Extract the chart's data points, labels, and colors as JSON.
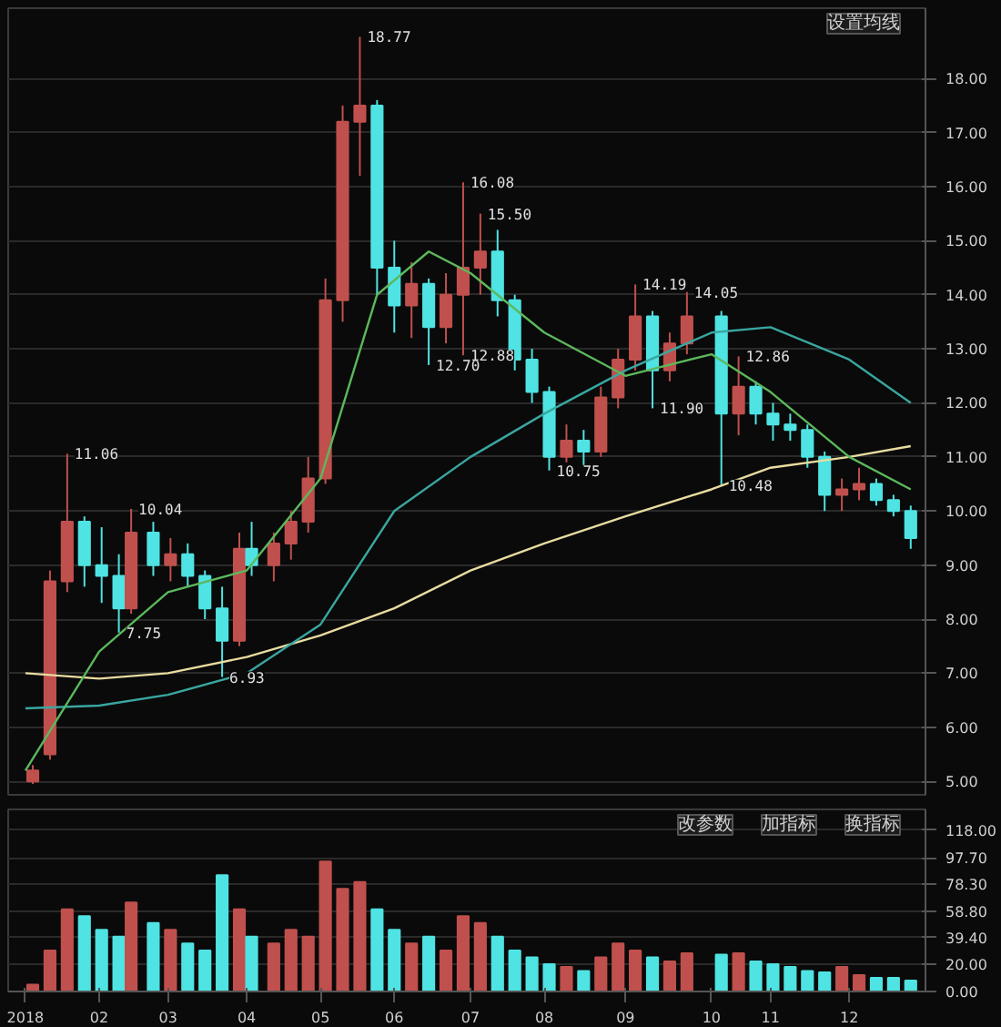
{
  "chart_data": [
    {
      "type": "candlestick",
      "x": [
        "2018-01-05",
        "2018-01-12",
        "2018-01-19",
        "2018-01-26",
        "2018-02-02",
        "2018-02-09",
        "2018-02-14",
        "2018-02-23",
        "2018-03-02",
        "2018-03-09",
        "2018-03-16",
        "2018-03-23",
        "2018-03-30",
        "2018-04-04",
        "2018-04-13",
        "2018-04-20",
        "2018-04-27",
        "2018-05-04",
        "2018-05-11",
        "2018-05-18",
        "2018-05-25",
        "2018-06-01",
        "2018-06-08",
        "2018-06-15",
        "2018-06-22",
        "2018-06-29",
        "2018-07-06",
        "2018-07-13",
        "2018-07-20",
        "2018-07-27",
        "2018-08-03",
        "2018-08-10",
        "2018-08-17",
        "2018-08-24",
        "2018-08-31",
        "2018-09-07",
        "2018-09-14",
        "2018-09-21",
        "2018-09-28",
        "2018-10-12",
        "2018-10-19",
        "2018-10-26",
        "2018-11-02",
        "2018-11-09",
        "2018-11-16",
        "2018-11-23",
        "2018-11-30",
        "2018-12-07",
        "2018-12-14",
        "2018-12-21",
        "2018-12-28"
      ],
      "ohlc": [
        [
          5.0,
          5.3,
          4.95,
          5.2
        ],
        [
          5.5,
          8.9,
          5.4,
          8.7
        ],
        [
          8.7,
          11.06,
          8.5,
          9.8
        ],
        [
          9.8,
          9.9,
          8.6,
          9.0
        ],
        [
          9.0,
          9.7,
          8.3,
          8.8
        ],
        [
          8.8,
          9.2,
          7.75,
          8.2
        ],
        [
          8.2,
          10.04,
          8.1,
          9.6
        ],
        [
          9.6,
          9.8,
          8.8,
          9.0
        ],
        [
          9.0,
          9.5,
          8.7,
          9.2
        ],
        [
          9.2,
          9.4,
          8.6,
          8.8
        ],
        [
          8.8,
          8.9,
          8.0,
          8.2
        ],
        [
          8.2,
          8.6,
          6.93,
          7.6
        ],
        [
          7.6,
          9.6,
          7.5,
          9.3
        ],
        [
          9.3,
          9.8,
          8.8,
          9.0
        ],
        [
          9.0,
          9.6,
          8.7,
          9.4
        ],
        [
          9.4,
          10.0,
          9.1,
          9.8
        ],
        [
          9.8,
          11.0,
          9.6,
          10.6
        ],
        [
          10.6,
          14.3,
          10.5,
          13.9
        ],
        [
          13.9,
          17.5,
          13.5,
          17.2
        ],
        [
          17.2,
          18.77,
          16.2,
          17.5
        ],
        [
          17.5,
          17.6,
          14.0,
          14.5
        ],
        [
          14.5,
          15.0,
          13.3,
          13.8
        ],
        [
          13.8,
          14.6,
          13.2,
          14.2
        ],
        [
          14.2,
          14.3,
          12.7,
          13.4
        ],
        [
          13.4,
          14.4,
          13.1,
          14.0
        ],
        [
          14.0,
          16.08,
          12.88,
          14.5
        ],
        [
          14.5,
          15.5,
          14.0,
          14.8
        ],
        [
          14.8,
          15.2,
          13.6,
          13.9
        ],
        [
          13.9,
          14.0,
          12.6,
          12.8
        ],
        [
          12.8,
          13.0,
          12.0,
          12.2
        ],
        [
          12.2,
          12.3,
          10.75,
          11.0
        ],
        [
          11.0,
          11.6,
          10.9,
          11.3
        ],
        [
          11.3,
          11.5,
          10.8,
          11.1
        ],
        [
          11.1,
          12.3,
          11.0,
          12.1
        ],
        [
          12.1,
          13.0,
          11.9,
          12.8
        ],
        [
          12.8,
          14.19,
          12.6,
          13.6
        ],
        [
          13.6,
          13.7,
          11.9,
          12.6
        ],
        [
          12.6,
          13.3,
          12.4,
          13.1
        ],
        [
          13.1,
          14.05,
          12.9,
          13.6
        ],
        [
          13.6,
          13.7,
          10.48,
          11.8
        ],
        [
          11.8,
          12.86,
          11.4,
          12.3
        ],
        [
          12.3,
          12.4,
          11.6,
          11.8
        ],
        [
          11.8,
          12.0,
          11.3,
          11.6
        ],
        [
          11.6,
          11.8,
          11.3,
          11.5
        ],
        [
          11.5,
          11.6,
          10.8,
          11.0
        ],
        [
          11.0,
          11.1,
          10.0,
          10.3
        ],
        [
          10.3,
          10.6,
          10.0,
          10.4
        ],
        [
          10.4,
          10.8,
          10.2,
          10.5
        ],
        [
          10.5,
          10.6,
          10.1,
          10.2
        ],
        [
          10.2,
          10.3,
          9.9,
          10.0
        ],
        [
          10.0,
          10.1,
          9.3,
          9.5
        ]
      ],
      "colors": [
        "#c0504d",
        "#c0504d",
        "#c0504d",
        "#4fe3e3",
        "#4fe3e3",
        "#4fe3e3",
        "#c0504d",
        "#4fe3e3",
        "#c0504d",
        "#4fe3e3",
        "#4fe3e3",
        "#4fe3e3",
        "#c0504d",
        "#4fe3e3",
        "#c0504d",
        "#c0504d",
        "#c0504d",
        "#c0504d",
        "#c0504d",
        "#c0504d",
        "#4fe3e3",
        "#4fe3e3",
        "#c0504d",
        "#4fe3e3",
        "#c0504d",
        "#c0504d",
        "#c0504d",
        "#4fe3e3",
        "#4fe3e3",
        "#4fe3e3",
        "#4fe3e3",
        "#c0504d",
        "#4fe3e3",
        "#c0504d",
        "#c0504d",
        "#c0504d",
        "#4fe3e3",
        "#c0504d",
        "#c0504d",
        "#4fe3e3",
        "#c0504d",
        "#4fe3e3",
        "#4fe3e3",
        "#4fe3e3",
        "#4fe3e3",
        "#4fe3e3",
        "#c0504d",
        "#c0504d",
        "#4fe3e3",
        "#4fe3e3",
        "#4fe3e3"
      ],
      "series": [
        {
          "type": "line",
          "color": "#e8dca0",
          "x": [
            "2018-01-02",
            "2018-02-01",
            "2018-03-01",
            "2018-04-02",
            "2018-05-02",
            "2018-06-01",
            "2018-07-02",
            "2018-08-01",
            "2018-09-03",
            "2018-10-08",
            "2018-11-01",
            "2018-12-03",
            "2018-12-28"
          ],
          "values": [
            7.0,
            6.9,
            7.0,
            7.3,
            7.7,
            8.2,
            8.9,
            9.4,
            9.9,
            10.4,
            10.8,
            11.0,
            11.2
          ]
        },
        {
          "type": "line",
          "color": "#3aa6a0",
          "x": [
            "2018-01-02",
            "2018-02-01",
            "2018-03-01",
            "2018-04-02",
            "2018-05-02",
            "2018-06-01",
            "2018-07-02",
            "2018-08-01",
            "2018-09-03",
            "2018-10-08",
            "2018-11-01",
            "2018-12-03",
            "2018-12-28"
          ],
          "values": [
            6.35,
            6.4,
            6.6,
            7.0,
            7.9,
            10.0,
            11.0,
            11.8,
            12.6,
            13.3,
            13.4,
            12.8,
            12.0
          ]
        },
        {
          "type": "line",
          "color": "#5cb85c",
          "x": [
            "2018-01-02",
            "2018-02-01",
            "2018-03-01",
            "2018-04-02",
            "2018-05-02",
            "2018-05-25",
            "2018-06-15",
            "2018-07-02",
            "2018-08-01",
            "2018-09-03",
            "2018-10-08",
            "2018-11-01",
            "2018-12-03",
            "2018-12-28"
          ],
          "values": [
            5.2,
            7.4,
            8.5,
            8.9,
            10.6,
            14.0,
            14.8,
            14.4,
            13.3,
            12.5,
            12.9,
            12.2,
            11.0,
            10.4
          ]
        }
      ],
      "xlim": [
        "2017-12-26",
        "2019-01-03"
      ],
      "ylim": [
        4.75,
        19.3
      ],
      "yticks": [
        {
          "value": 5,
          "label": "5.00"
        },
        {
          "value": 6,
          "label": "6.00"
        },
        {
          "value": 7,
          "label": "7.00"
        },
        {
          "value": 8,
          "label": "8.00"
        },
        {
          "value": 9,
          "label": "9.00"
        },
        {
          "value": 10,
          "label": "10.00"
        },
        {
          "value": 11,
          "label": "11.00"
        },
        {
          "value": 12,
          "label": "12.00"
        },
        {
          "value": 13,
          "label": "13.00"
        },
        {
          "value": 14,
          "label": "14.00"
        },
        {
          "value": 15,
          "label": "15.00"
        },
        {
          "value": 16,
          "label": "16.00"
        },
        {
          "value": 17,
          "label": "17.00"
        },
        {
          "value": 18,
          "label": "18.00"
        }
      ],
      "grid": "y",
      "tick_labels": "y",
      "annotations": [
        "设置均线",
        {
          "text": "18.77",
          "x": "2018-05-18",
          "y": 18.77
        },
        {
          "text": "16.08",
          "x": "2018-06-29",
          "y": 16.08
        },
        {
          "text": "15.50",
          "x": "2018-07-06",
          "y": 15.5
        },
        {
          "text": "14.19",
          "x": "2018-09-07",
          "y": 14.19
        },
        {
          "text": "14.05",
          "x": "2018-09-28",
          "y": 14.05
        },
        {
          "text": "12.86",
          "x": "2018-10-19",
          "y": 12.86
        },
        {
          "text": "12.70",
          "x": "2018-06-15",
          "y": 12.7
        },
        {
          "text": "12.88",
          "x": "2018-06-29",
          "y": 12.88
        },
        {
          "text": "11.90",
          "x": "2018-09-14",
          "y": 11.9
        },
        {
          "text": "10.75",
          "x": "2018-08-03",
          "y": 10.75
        },
        {
          "text": "10.48",
          "x": "2018-10-12",
          "y": 10.48
        },
        {
          "text": "11.06",
          "x": "2018-01-19",
          "y": 11.06
        },
        {
          "text": "10.04",
          "x": "2018-02-14",
          "y": 10.04
        },
        {
          "text": "7.75",
          "x": "2018-02-09",
          "y": 7.75
        },
        {
          "text": "6.93",
          "x": "2018-03-23",
          "y": 6.93
        }
      ]
    },
    {
      "type": "bar",
      "x": [
        "2018-01-05",
        "2018-01-12",
        "2018-01-19",
        "2018-01-26",
        "2018-02-02",
        "2018-02-09",
        "2018-02-14",
        "2018-02-23",
        "2018-03-02",
        "2018-03-09",
        "2018-03-16",
        "2018-03-23",
        "2018-03-30",
        "2018-04-04",
        "2018-04-13",
        "2018-04-20",
        "2018-04-27",
        "2018-05-04",
        "2018-05-11",
        "2018-05-18",
        "2018-05-25",
        "2018-06-01",
        "2018-06-08",
        "2018-06-15",
        "2018-06-22",
        "2018-06-29",
        "2018-07-06",
        "2018-07-13",
        "2018-07-20",
        "2018-07-27",
        "2018-08-03",
        "2018-08-10",
        "2018-08-17",
        "2018-08-24",
        "2018-08-31",
        "2018-09-07",
        "2018-09-14",
        "2018-09-21",
        "2018-09-28",
        "2018-10-12",
        "2018-10-19",
        "2018-10-26",
        "2018-11-02",
        "2018-11-09",
        "2018-11-16",
        "2018-11-23",
        "2018-11-30",
        "2018-12-07",
        "2018-12-14",
        "2018-12-21",
        "2018-12-28"
      ],
      "values": [
        5,
        30,
        60,
        55,
        45,
        40,
        65,
        50,
        45,
        35,
        30,
        85,
        60,
        40,
        35,
        45,
        40,
        95,
        75,
        80,
        60,
        45,
        35,
        40,
        30,
        55,
        50,
        40,
        30,
        25,
        20,
        18,
        15,
        25,
        35,
        30,
        25,
        22,
        28,
        27,
        28,
        22,
        20,
        18,
        15,
        14,
        18,
        12,
        10,
        10,
        8
      ],
      "colors": [
        "#c0504d",
        "#c0504d",
        "#c0504d",
        "#4fe3e3",
        "#4fe3e3",
        "#4fe3e3",
        "#c0504d",
        "#4fe3e3",
        "#c0504d",
        "#4fe3e3",
        "#4fe3e3",
        "#4fe3e3",
        "#c0504d",
        "#4fe3e3",
        "#c0504d",
        "#c0504d",
        "#c0504d",
        "#c0504d",
        "#c0504d",
        "#c0504d",
        "#4fe3e3",
        "#4fe3e3",
        "#c0504d",
        "#4fe3e3",
        "#c0504d",
        "#c0504d",
        "#c0504d",
        "#4fe3e3",
        "#4fe3e3",
        "#4fe3e3",
        "#4fe3e3",
        "#c0504d",
        "#4fe3e3",
        "#c0504d",
        "#c0504d",
        "#c0504d",
        "#4fe3e3",
        "#c0504d",
        "#c0504d",
        "#4fe3e3",
        "#c0504d",
        "#4fe3e3",
        "#4fe3e3",
        "#4fe3e3",
        "#4fe3e3",
        "#4fe3e3",
        "#c0504d",
        "#c0504d",
        "#4fe3e3",
        "#4fe3e3",
        "#4fe3e3"
      ],
      "xlim": [
        "2017-12-26",
        "2019-01-03"
      ],
      "xticks": [
        {
          "value": "2018-01-02",
          "label": "2018"
        },
        {
          "value": "2018-02-01",
          "label": "02"
        },
        {
          "value": "2018-03-01",
          "label": "03"
        },
        {
          "value": "2018-04-02",
          "label": "04"
        },
        {
          "value": "2018-05-02",
          "label": "05"
        },
        {
          "value": "2018-06-01",
          "label": "06"
        },
        {
          "value": "2018-07-02",
          "label": "07"
        },
        {
          "value": "2018-08-01",
          "label": "08"
        },
        {
          "value": "2018-09-03",
          "label": "09"
        },
        {
          "value": "2018-10-08",
          "label": "10"
        },
        {
          "value": "2018-11-01",
          "label": "11"
        },
        {
          "value": "2018-12-03",
          "label": "12"
        }
      ],
      "ylim": [
        0,
        133
      ],
      "yticks": [
        {
          "value": 0,
          "label": "0.00"
        },
        {
          "value": 20,
          "label": "20.00"
        },
        {
          "value": 39.4,
          "label": "39.40"
        },
        {
          "value": 58.8,
          "label": "58.80"
        },
        {
          "value": 78.3,
          "label": "78.30"
        },
        {
          "value": 97.7,
          "label": "97.70"
        },
        {
          "value": 118,
          "label": "118.00"
        }
      ],
      "grid": "y",
      "annotations": [
        "改参数",
        "加指标",
        "换指标"
      ]
    }
  ]
}
